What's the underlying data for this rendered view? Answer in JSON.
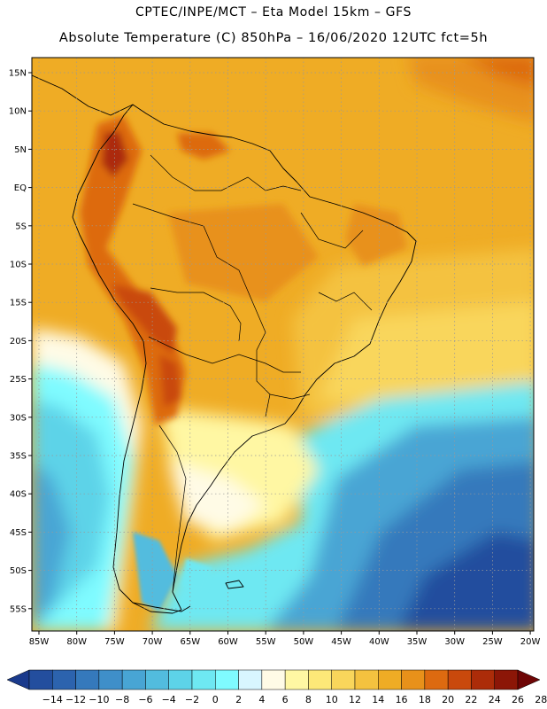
{
  "header": {
    "line1": "CPTEC/INPE/MCT –  Eta Model 15km – GFS",
    "line2": "Absolute Temperature (C) 850hPa – 16/06/2020 12UTC fct=5h"
  },
  "map": {
    "lat_labels": [
      "15N",
      "10N",
      "5N",
      "EQ",
      "5S",
      "10S",
      "15S",
      "20S",
      "25S",
      "30S",
      "35S",
      "40S",
      "45S",
      "50S",
      "55S"
    ],
    "lon_labels": [
      "85W",
      "80W",
      "75W",
      "70W",
      "65W",
      "60W",
      "55W",
      "50W",
      "45W",
      "40W",
      "35W",
      "30W",
      "25W",
      "20W"
    ]
  },
  "colorbar": {
    "labels": [
      "-14",
      "-12",
      "-10",
      "-8",
      "-6",
      "-4",
      "-2",
      "0",
      "2",
      "4",
      "6",
      "8",
      "10",
      "12",
      "14",
      "16",
      "18",
      "20",
      "22",
      "24",
      "26",
      "28"
    ],
    "colors": [
      "#1a3a8c",
      "#234e9e",
      "#2c63ae",
      "#3579bc",
      "#3f8fc9",
      "#48a5d4",
      "#52bcde",
      "#5dd3e8",
      "#6ee8f2",
      "#7ffbff",
      "#d8f6ff",
      "#fffbe6",
      "#fff7a3",
      "#fde878",
      "#f9d65b",
      "#f4c23f",
      "#efac25",
      "#e8911a",
      "#dd6a10",
      "#c9490c",
      "#ac2c09",
      "#8c1607",
      "#6e0505"
    ]
  }
}
